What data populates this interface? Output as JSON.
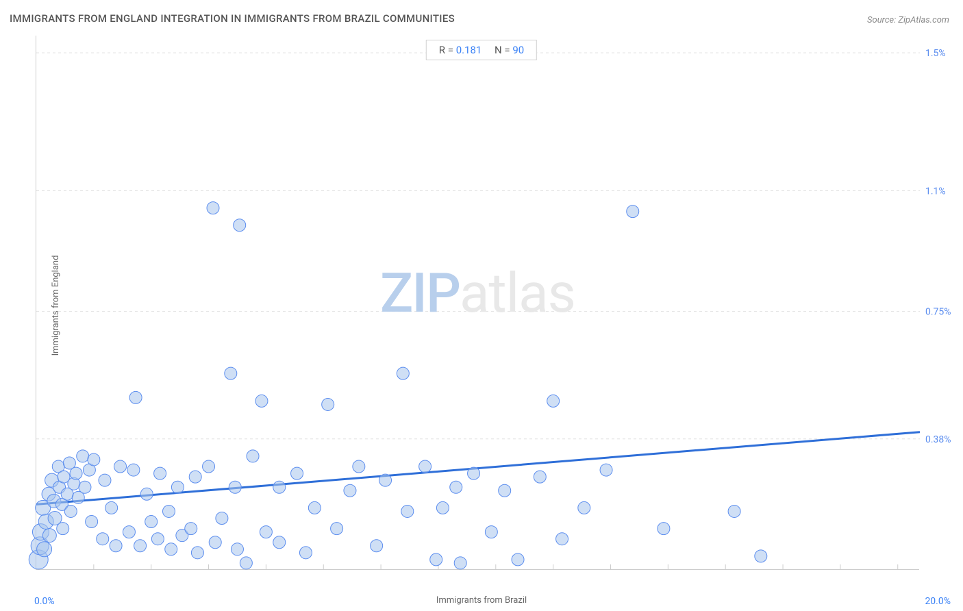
{
  "title": "IMMIGRANTS FROM ENGLAND INTEGRATION IN IMMIGRANTS FROM BRAZIL COMMUNITIES",
  "source": "Source: ZipAtlas.com",
  "stats": {
    "r_label": "R = ",
    "r_value": "0.181",
    "n_label": "N = ",
    "n_value": "90"
  },
  "chart": {
    "type": "scatter",
    "x_label": "Immigrants from Brazil",
    "y_label": "Immigrants from England",
    "xlim": [
      0.0,
      20.0
    ],
    "ylim": [
      0.0,
      1.55
    ],
    "x_min_label": "0.0%",
    "x_max_label": "20.0%",
    "y_ticks": [
      {
        "value": 0.38,
        "label": "0.38%"
      },
      {
        "value": 0.75,
        "label": "0.75%"
      },
      {
        "value": 1.1,
        "label": "1.1%"
      },
      {
        "value": 1.5,
        "label": "1.5%"
      }
    ],
    "x_minor_ticks": [
      1.3,
      2.6,
      3.9,
      5.2,
      6.5,
      7.8,
      9.1,
      10.4,
      11.7,
      13.0,
      14.3,
      15.6,
      16.9,
      18.2,
      19.5
    ],
    "grid_color": "#e0e0e0",
    "background_color": "#ffffff",
    "tick_label_color": "#5b8def",
    "tick_label_fontsize": 14,
    "marker": {
      "fill": "#a8c5ec",
      "fill_opacity": 0.55,
      "stroke": "#5b8def",
      "stroke_width": 1,
      "radius": 9
    },
    "trendline": {
      "color": "#2f6fd8",
      "width": 3,
      "y_at_x0": 0.19,
      "y_at_xmax": 0.4
    },
    "watermark": {
      "zip": "ZIP",
      "atlas": "atlas"
    },
    "points": [
      {
        "x": 0.05,
        "y": 0.03,
        "r": 14
      },
      {
        "x": 0.08,
        "y": 0.07,
        "r": 13
      },
      {
        "x": 0.1,
        "y": 0.11,
        "r": 12
      },
      {
        "x": 0.15,
        "y": 0.18,
        "r": 11
      },
      {
        "x": 0.18,
        "y": 0.06,
        "r": 11
      },
      {
        "x": 0.22,
        "y": 0.14,
        "r": 11
      },
      {
        "x": 0.28,
        "y": 0.22,
        "r": 10
      },
      {
        "x": 0.3,
        "y": 0.1,
        "r": 10
      },
      {
        "x": 0.35,
        "y": 0.26,
        "r": 10
      },
      {
        "x": 0.4,
        "y": 0.2,
        "r": 10
      },
      {
        "x": 0.42,
        "y": 0.15,
        "r": 10
      },
      {
        "x": 0.5,
        "y": 0.3,
        "r": 9
      },
      {
        "x": 0.52,
        "y": 0.24,
        "r": 9
      },
      {
        "x": 0.58,
        "y": 0.19,
        "r": 9
      },
      {
        "x": 0.6,
        "y": 0.12,
        "r": 9
      },
      {
        "x": 0.62,
        "y": 0.27,
        "r": 9
      },
      {
        "x": 0.7,
        "y": 0.22,
        "r": 9
      },
      {
        "x": 0.75,
        "y": 0.31,
        "r": 9
      },
      {
        "x": 0.78,
        "y": 0.17,
        "r": 9
      },
      {
        "x": 0.85,
        "y": 0.25,
        "r": 9
      },
      {
        "x": 0.9,
        "y": 0.28,
        "r": 9
      },
      {
        "x": 0.95,
        "y": 0.21,
        "r": 9
      },
      {
        "x": 1.05,
        "y": 0.33,
        "r": 9
      },
      {
        "x": 1.1,
        "y": 0.24,
        "r": 9
      },
      {
        "x": 1.2,
        "y": 0.29,
        "r": 9
      },
      {
        "x": 1.25,
        "y": 0.14,
        "r": 9
      },
      {
        "x": 1.3,
        "y": 0.32,
        "r": 9
      },
      {
        "x": 1.5,
        "y": 0.09,
        "r": 9
      },
      {
        "x": 1.55,
        "y": 0.26,
        "r": 9
      },
      {
        "x": 1.7,
        "y": 0.18,
        "r": 9
      },
      {
        "x": 1.8,
        "y": 0.07,
        "r": 9
      },
      {
        "x": 1.9,
        "y": 0.3,
        "r": 9
      },
      {
        "x": 2.1,
        "y": 0.11,
        "r": 9
      },
      {
        "x": 2.2,
        "y": 0.29,
        "r": 9
      },
      {
        "x": 2.25,
        "y": 0.5,
        "r": 9
      },
      {
        "x": 2.35,
        "y": 0.07,
        "r": 9
      },
      {
        "x": 2.5,
        "y": 0.22,
        "r": 9
      },
      {
        "x": 2.6,
        "y": 0.14,
        "r": 9
      },
      {
        "x": 2.75,
        "y": 0.09,
        "r": 9
      },
      {
        "x": 2.8,
        "y": 0.28,
        "r": 9
      },
      {
        "x": 3.0,
        "y": 0.17,
        "r": 9
      },
      {
        "x": 3.05,
        "y": 0.06,
        "r": 9
      },
      {
        "x": 3.2,
        "y": 0.24,
        "r": 9
      },
      {
        "x": 3.3,
        "y": 0.1,
        "r": 9
      },
      {
        "x": 3.5,
        "y": 0.12,
        "r": 9
      },
      {
        "x": 3.6,
        "y": 0.27,
        "r": 9
      },
      {
        "x": 3.65,
        "y": 0.05,
        "r": 9
      },
      {
        "x": 3.9,
        "y": 0.3,
        "r": 9
      },
      {
        "x": 4.0,
        "y": 1.05,
        "r": 9
      },
      {
        "x": 4.05,
        "y": 0.08,
        "r": 9
      },
      {
        "x": 4.2,
        "y": 0.15,
        "r": 9
      },
      {
        "x": 4.4,
        "y": 0.57,
        "r": 9
      },
      {
        "x": 4.5,
        "y": 0.24,
        "r": 9
      },
      {
        "x": 4.55,
        "y": 0.06,
        "r": 9
      },
      {
        "x": 4.6,
        "y": 1.0,
        "r": 9
      },
      {
        "x": 4.75,
        "y": 0.02,
        "r": 9
      },
      {
        "x": 4.9,
        "y": 0.33,
        "r": 9
      },
      {
        "x": 5.1,
        "y": 0.49,
        "r": 9
      },
      {
        "x": 5.2,
        "y": 0.11,
        "r": 9
      },
      {
        "x": 5.5,
        "y": 0.08,
        "r": 9
      },
      {
        "x": 5.5,
        "y": 0.24,
        "r": 9
      },
      {
        "x": 5.9,
        "y": 0.28,
        "r": 9
      },
      {
        "x": 6.1,
        "y": 0.05,
        "r": 9
      },
      {
        "x": 6.3,
        "y": 0.18,
        "r": 9
      },
      {
        "x": 6.6,
        "y": 0.48,
        "r": 9
      },
      {
        "x": 6.8,
        "y": 0.12,
        "r": 9
      },
      {
        "x": 7.1,
        "y": 0.23,
        "r": 9
      },
      {
        "x": 7.3,
        "y": 0.3,
        "r": 9
      },
      {
        "x": 7.7,
        "y": 0.07,
        "r": 9
      },
      {
        "x": 7.9,
        "y": 0.26,
        "r": 9
      },
      {
        "x": 8.3,
        "y": 0.57,
        "r": 9
      },
      {
        "x": 8.4,
        "y": 0.17,
        "r": 9
      },
      {
        "x": 8.8,
        "y": 0.3,
        "r": 9
      },
      {
        "x": 9.05,
        "y": 0.03,
        "r": 9
      },
      {
        "x": 9.2,
        "y": 0.18,
        "r": 9
      },
      {
        "x": 9.5,
        "y": 0.24,
        "r": 9
      },
      {
        "x": 9.6,
        "y": 0.02,
        "r": 9
      },
      {
        "x": 9.9,
        "y": 0.28,
        "r": 9
      },
      {
        "x": 10.3,
        "y": 0.11,
        "r": 9
      },
      {
        "x": 10.6,
        "y": 0.23,
        "r": 9
      },
      {
        "x": 10.9,
        "y": 0.03,
        "r": 9
      },
      {
        "x": 11.4,
        "y": 0.27,
        "r": 9
      },
      {
        "x": 11.7,
        "y": 0.49,
        "r": 9
      },
      {
        "x": 11.9,
        "y": 0.09,
        "r": 9
      },
      {
        "x": 12.4,
        "y": 0.18,
        "r": 9
      },
      {
        "x": 12.9,
        "y": 0.29,
        "r": 9
      },
      {
        "x": 13.5,
        "y": 1.04,
        "r": 9
      },
      {
        "x": 14.2,
        "y": 0.12,
        "r": 9
      },
      {
        "x": 15.8,
        "y": 0.17,
        "r": 9
      },
      {
        "x": 16.4,
        "y": 0.04,
        "r": 9
      }
    ]
  }
}
